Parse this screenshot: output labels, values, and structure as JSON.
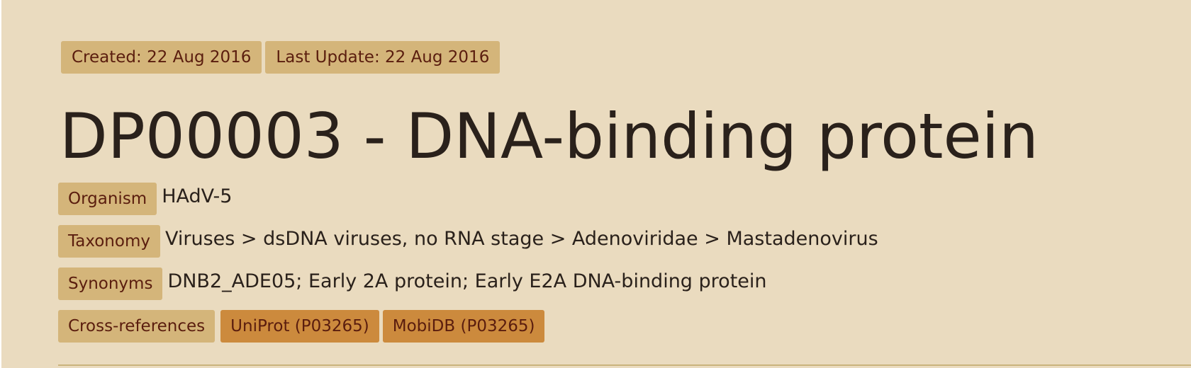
{
  "meta": {
    "created": "Created: 22 Aug 2016",
    "last_update": "Last Update: 22 Aug 2016"
  },
  "title": "DP00003 - DNA-binding protein",
  "fields": {
    "organism": {
      "label": "Organism",
      "value": "HAdV-5"
    },
    "taxonomy": {
      "label": "Taxonomy",
      "value": "Viruses > dsDNA viruses, no RNA stage > Adenoviridae > Mastadenovirus"
    },
    "synonyms": {
      "label": "Synonyms",
      "value": "DNB2_ADE05; Early 2A protein; Early E2A DNA-binding protein"
    },
    "cross_references": {
      "label": "Cross-references",
      "links": [
        {
          "label": "UniProt (P03265)"
        },
        {
          "label": "MobiDB (P03265)"
        }
      ]
    }
  },
  "colors": {
    "panel_background": "#eadbbf",
    "badge_background": "#d4b57a",
    "badge_text": "#5a1d0e",
    "link_badge_background": "#cc8a3d",
    "title_text": "#2a211b"
  }
}
